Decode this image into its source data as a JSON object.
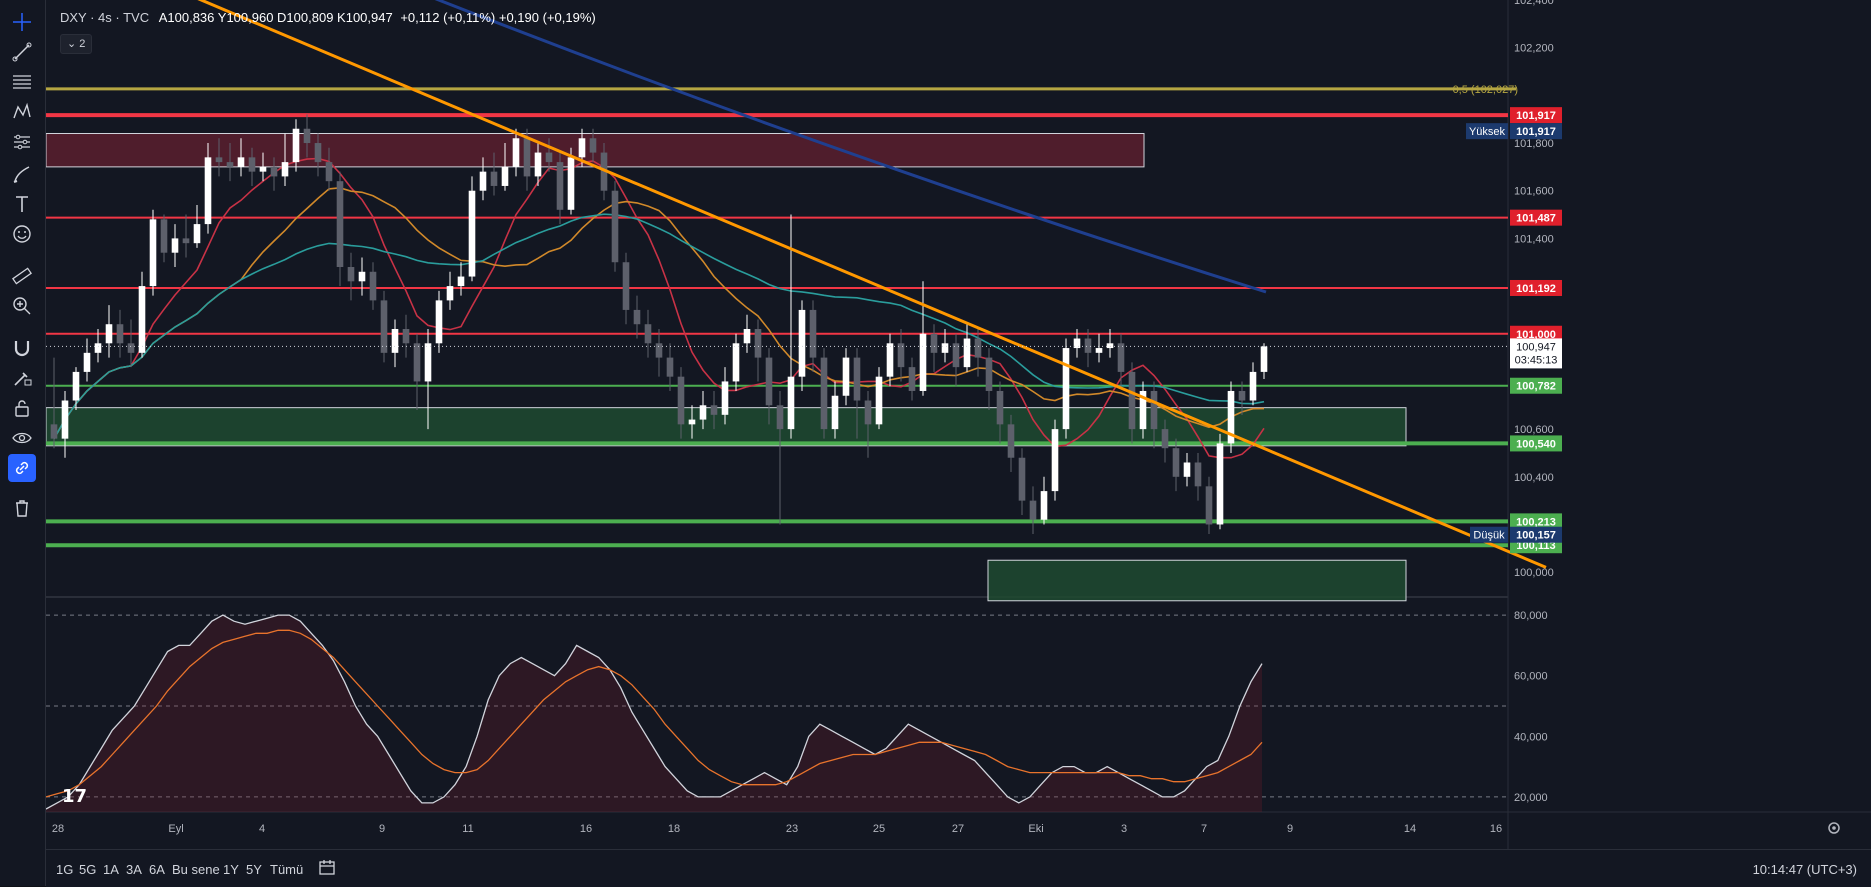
{
  "header": {
    "symbol": "DXY · 4s · TVC",
    "ohlc": "A100,836 Y100,960 D100,809 K100,947",
    "change": "+0,112 (+0,11%) +0,190 (+0,19%)",
    "collapse_label": "⌄ 2"
  },
  "bottom": {
    "periods": [
      "1G",
      "5G",
      "1A",
      "3A",
      "6A",
      "Bu sene",
      "1Y",
      "5Y",
      "Tümü"
    ],
    "clock": "10:14:47 (UTC+3)"
  },
  "logo_text": "17",
  "colors": {
    "background": "#131722",
    "bull": "#ffffff",
    "bear": "#5d606b",
    "resistance": "#f23645",
    "support": "#4caf50",
    "trendline": "#ff9800",
    "fib": "#b5a642",
    "ma_blue": "#1f3f8f",
    "ma_teal": "#2a9d9c",
    "ma_red": "#c83246",
    "ma_orange": "#d1892a"
  },
  "icons": [
    "crosshair-icon",
    "trendline-icon",
    "fib-icon",
    "pattern-icon",
    "forecast-icon",
    "brush-icon",
    "text-icon",
    "emoji-icon",
    "ruler-icon",
    "zoom-icon",
    "magnet-icon",
    "lock-drawing-icon",
    "unlock-icon",
    "eye-icon",
    "link-icon",
    "trash-icon"
  ],
  "chart_data": {
    "type": "candlestick",
    "symbol": "DXY",
    "interval": "4s",
    "price_axis": {
      "ticks": [
        "102,400",
        "102,200",
        "101,800",
        "101,600",
        "101,400",
        "100,600",
        "100,400",
        "100,000"
      ],
      "range": [
        99.9,
        102.4
      ]
    },
    "time_axis": {
      "labels": [
        "28",
        "Eyl",
        "4",
        "9",
        "11",
        "16",
        "18",
        "23",
        "25",
        "27",
        "Eki",
        "3",
        "7",
        "9",
        "14",
        "16"
      ]
    },
    "horizontal_levels": [
      {
        "value": 101.917,
        "label": "101,917",
        "kind": "resistance",
        "color": "#f23645"
      },
      {
        "value": 101.487,
        "label": "101,487",
        "kind": "resistance",
        "color": "#f23645"
      },
      {
        "value": 101.192,
        "label": "101,192",
        "kind": "resistance",
        "color": "#f23645"
      },
      {
        "value": 101.0,
        "label": "101,000",
        "kind": "resistance",
        "color": "#f23645"
      },
      {
        "value": 100.782,
        "label": "100,782",
        "kind": "support",
        "color": "#4caf50"
      },
      {
        "value": 100.54,
        "label": "100,540",
        "kind": "support",
        "color": "#4caf50"
      },
      {
        "value": 100.213,
        "label": "100,213",
        "kind": "support",
        "color": "#4caf50"
      },
      {
        "value": 100.113,
        "label": "100,113",
        "kind": "support",
        "color": "#4caf50"
      }
    ],
    "fib_level": {
      "value": 102.027,
      "label": "0,5 (102,027)"
    },
    "high_marker": {
      "label": "Yüksek",
      "value": "101,917"
    },
    "low_marker": {
      "label": "Düşük",
      "value": "100,157"
    },
    "last_price": {
      "value": 100.947,
      "label": "100,947",
      "countdown": "03:45:13"
    },
    "zones": [
      {
        "name": "supply",
        "top": 101.84,
        "bottom": 101.7
      },
      {
        "name": "demand-main",
        "top": 100.69,
        "bottom": 100.53
      },
      {
        "name": "demand-lower",
        "top": 100.05,
        "bottom": 99.88
      }
    ],
    "trendline": {
      "from": 102.48,
      "to": 100.02
    },
    "candles": [
      [
        100.62,
        100.56,
        100.9,
        100.52
      ],
      [
        100.56,
        100.72,
        100.76,
        100.48
      ],
      [
        100.72,
        100.84,
        100.86,
        100.68
      ],
      [
        100.84,
        100.92,
        100.98,
        100.8
      ],
      [
        100.92,
        100.96,
        101.02,
        100.88
      ],
      [
        100.96,
        101.04,
        101.12,
        100.9
      ],
      [
        101.04,
        100.96,
        101.1,
        100.9
      ],
      [
        100.96,
        100.92,
        101.06,
        100.86
      ],
      [
        100.92,
        101.2,
        101.26,
        100.9
      ],
      [
        101.2,
        101.48,
        101.52,
        101.16
      ],
      [
        101.48,
        101.34,
        101.5,
        101.3
      ],
      [
        101.34,
        101.4,
        101.46,
        101.28
      ],
      [
        101.4,
        101.38,
        101.5,
        101.32
      ],
      [
        101.38,
        101.46,
        101.54,
        101.36
      ],
      [
        101.46,
        101.74,
        101.8,
        101.42
      ],
      [
        101.74,
        101.72,
        101.82,
        101.66
      ],
      [
        101.72,
        101.7,
        101.8,
        101.64
      ],
      [
        101.7,
        101.74,
        101.82,
        101.66
      ],
      [
        101.74,
        101.68,
        101.78,
        101.62
      ],
      [
        101.68,
        101.7,
        101.76,
        101.64
      ],
      [
        101.7,
        101.66,
        101.74,
        101.6
      ],
      [
        101.66,
        101.72,
        101.84,
        101.62
      ],
      [
        101.72,
        101.86,
        101.9,
        101.68
      ],
      [
        101.86,
        101.8,
        101.92,
        101.74
      ],
      [
        101.8,
        101.72,
        101.84,
        101.66
      ],
      [
        101.72,
        101.64,
        101.78,
        101.6
      ],
      [
        101.64,
        101.28,
        101.68,
        101.2
      ],
      [
        101.28,
        101.22,
        101.34,
        101.14
      ],
      [
        101.22,
        101.26,
        101.32,
        101.16
      ],
      [
        101.26,
        101.14,
        101.3,
        101.1
      ],
      [
        101.14,
        100.92,
        101.18,
        100.88
      ],
      [
        100.92,
        101.02,
        101.06,
        100.86
      ],
      [
        101.02,
        100.96,
        101.08,
        100.9
      ],
      [
        100.96,
        100.8,
        101.0,
        100.68
      ],
      [
        100.8,
        100.96,
        101.02,
        100.6
      ],
      [
        100.96,
        101.14,
        101.18,
        100.92
      ],
      [
        101.14,
        101.2,
        101.26,
        101.1
      ],
      [
        101.2,
        101.24,
        101.3,
        101.16
      ],
      [
        101.24,
        101.6,
        101.66,
        101.22
      ],
      [
        101.6,
        101.68,
        101.74,
        101.56
      ],
      [
        101.68,
        101.62,
        101.76,
        101.58
      ],
      [
        101.62,
        101.7,
        101.8,
        101.6
      ],
      [
        101.7,
        101.82,
        101.86,
        101.66
      ],
      [
        101.82,
        101.66,
        101.86,
        101.6
      ],
      [
        101.66,
        101.76,
        101.8,
        101.62
      ],
      [
        101.76,
        101.72,
        101.82,
        101.68
      ],
      [
        101.72,
        101.52,
        101.76,
        101.46
      ],
      [
        101.52,
        101.74,
        101.78,
        101.5
      ],
      [
        101.74,
        101.82,
        101.86,
        101.7
      ],
      [
        101.82,
        101.76,
        101.86,
        101.72
      ],
      [
        101.76,
        101.6,
        101.8,
        101.56
      ],
      [
        101.6,
        101.3,
        101.64,
        101.26
      ],
      [
        101.3,
        101.1,
        101.34,
        101.04
      ],
      [
        101.1,
        101.04,
        101.16,
        100.98
      ],
      [
        101.04,
        100.96,
        101.1,
        100.9
      ],
      [
        100.96,
        100.9,
        101.02,
        100.82
      ],
      [
        100.9,
        100.82,
        100.96,
        100.76
      ],
      [
        100.82,
        100.62,
        100.86,
        100.56
      ],
      [
        100.62,
        100.64,
        100.7,
        100.56
      ],
      [
        100.64,
        100.7,
        100.76,
        100.6
      ],
      [
        100.7,
        100.66,
        100.76,
        100.6
      ],
      [
        100.66,
        100.8,
        100.86,
        100.62
      ],
      [
        100.8,
        100.96,
        101.0,
        100.76
      ],
      [
        100.96,
        101.02,
        101.08,
        100.92
      ],
      [
        101.02,
        100.9,
        101.06,
        100.8
      ],
      [
        100.9,
        100.7,
        100.94,
        100.62
      ],
      [
        100.7,
        100.6,
        100.76,
        100.2
      ],
      [
        100.6,
        100.82,
        101.5,
        100.56
      ],
      [
        100.82,
        101.1,
        101.14,
        100.76
      ],
      [
        101.1,
        100.9,
        101.14,
        100.84
      ],
      [
        100.9,
        100.6,
        100.94,
        100.56
      ],
      [
        100.6,
        100.74,
        100.8,
        100.56
      ],
      [
        100.74,
        100.9,
        100.94,
        100.7
      ],
      [
        100.9,
        100.72,
        100.94,
        100.56
      ],
      [
        100.72,
        100.62,
        100.76,
        100.48
      ],
      [
        100.62,
        100.82,
        100.86,
        100.6
      ],
      [
        100.82,
        100.96,
        101.0,
        100.78
      ],
      [
        100.96,
        100.86,
        101.02,
        100.8
      ],
      [
        100.86,
        100.76,
        100.9,
        100.72
      ],
      [
        100.76,
        101.0,
        101.22,
        100.74
      ],
      [
        101.0,
        100.92,
        101.04,
        100.84
      ],
      [
        100.92,
        100.96,
        101.02,
        100.88
      ],
      [
        100.96,
        100.86,
        101.0,
        100.78
      ],
      [
        100.86,
        100.98,
        101.04,
        100.84
      ],
      [
        100.98,
        100.9,
        101.02,
        100.82
      ],
      [
        100.9,
        100.76,
        100.94,
        100.68
      ],
      [
        100.76,
        100.62,
        100.8,
        100.54
      ],
      [
        100.62,
        100.48,
        100.66,
        100.42
      ],
      [
        100.48,
        100.3,
        100.52,
        100.24
      ],
      [
        100.3,
        100.22,
        100.36,
        100.16
      ],
      [
        100.22,
        100.34,
        100.4,
        100.2
      ],
      [
        100.34,
        100.6,
        100.64,
        100.3
      ],
      [
        100.6,
        100.94,
        100.98,
        100.56
      ],
      [
        100.94,
        100.98,
        101.02,
        100.9
      ],
      [
        100.98,
        100.92,
        101.02,
        100.86
      ],
      [
        100.92,
        100.94,
        101.0,
        100.88
      ],
      [
        100.94,
        100.96,
        101.02,
        100.9
      ],
      [
        100.96,
        100.84,
        101.0,
        100.78
      ],
      [
        100.84,
        100.6,
        100.88,
        100.54
      ],
      [
        100.6,
        100.76,
        100.8,
        100.56
      ],
      [
        100.76,
        100.6,
        100.8,
        100.52
      ],
      [
        100.6,
        100.52,
        100.64,
        100.46
      ],
      [
        100.52,
        100.4,
        100.56,
        100.34
      ],
      [
        100.4,
        100.46,
        100.5,
        100.36
      ],
      [
        100.46,
        100.36,
        100.5,
        100.3
      ],
      [
        100.36,
        100.2,
        100.4,
        100.16
      ],
      [
        100.2,
        100.54,
        100.58,
        100.18
      ],
      [
        100.54,
        100.76,
        100.8,
        100.5
      ],
      [
        100.76,
        100.72,
        100.8,
        100.66
      ],
      [
        100.72,
        100.84,
        100.88,
        100.7
      ],
      [
        100.84,
        100.947,
        100.96,
        100.81
      ]
    ],
    "moving_averages": [
      {
        "name": "MA blue",
        "color": "#1f3f8f",
        "from": 102.5,
        "to": 101.2
      },
      {
        "name": "MA teal",
        "color": "#2a9d9c",
        "from": 102.2,
        "to": 100.97
      },
      {
        "name": "MA red",
        "color": "#c83246",
        "from": 100.75,
        "to": 100.59
      },
      {
        "name": "MA orange",
        "color": "#d1892a",
        "from": 101.1,
        "to": 100.67
      }
    ],
    "oscillator": {
      "ticks": [
        "80,000",
        "60,000",
        "40,000",
        "20,000"
      ],
      "levels": [
        80,
        50,
        20
      ],
      "range": [
        15,
        85
      ],
      "k": [
        16,
        18,
        20,
        24,
        30,
        36,
        42,
        46,
        50,
        56,
        62,
        68,
        70,
        70,
        74,
        78,
        80,
        78,
        77,
        78,
        79,
        80,
        80,
        78,
        74,
        70,
        65,
        58,
        50,
        44,
        40,
        34,
        28,
        22,
        18,
        18,
        20,
        24,
        30,
        40,
        52,
        60,
        64,
        66,
        64,
        62,
        60,
        64,
        70,
        68,
        66,
        62,
        56,
        48,
        42,
        36,
        30,
        26,
        22,
        20,
        20,
        20,
        22,
        24,
        26,
        28,
        26,
        24,
        30,
        40,
        44,
        42,
        40,
        38,
        36,
        34,
        36,
        40,
        44,
        42,
        40,
        38,
        36,
        34,
        32,
        28,
        24,
        20,
        18,
        20,
        24,
        28,
        30,
        30,
        28,
        28,
        30,
        28,
        26,
        24,
        22,
        20,
        20,
        22,
        26,
        30,
        32,
        40,
        50,
        58,
        64
      ],
      "d": [
        20,
        21,
        22,
        24,
        27,
        30,
        34,
        38,
        42,
        46,
        50,
        55,
        59,
        63,
        66,
        69,
        71,
        72,
        73,
        74,
        74,
        75,
        75,
        74,
        72,
        69,
        66,
        62,
        58,
        54,
        50,
        46,
        42,
        38,
        34,
        31,
        29,
        28,
        28,
        29,
        32,
        36,
        40,
        44,
        48,
        52,
        55,
        58,
        60,
        62,
        63,
        62,
        60,
        57,
        53,
        49,
        44,
        40,
        36,
        32,
        29,
        27,
        25,
        24,
        24,
        24,
        24,
        25,
        27,
        29,
        31,
        32,
        33,
        34,
        34,
        34,
        35,
        36,
        37,
        38,
        38,
        38,
        37,
        36,
        35,
        34,
        32,
        30,
        29,
        28,
        28,
        28,
        28,
        28,
        28,
        28,
        28,
        28,
        27,
        27,
        26,
        26,
        25,
        25,
        26,
        27,
        28,
        30,
        32,
        34,
        38
      ]
    }
  }
}
